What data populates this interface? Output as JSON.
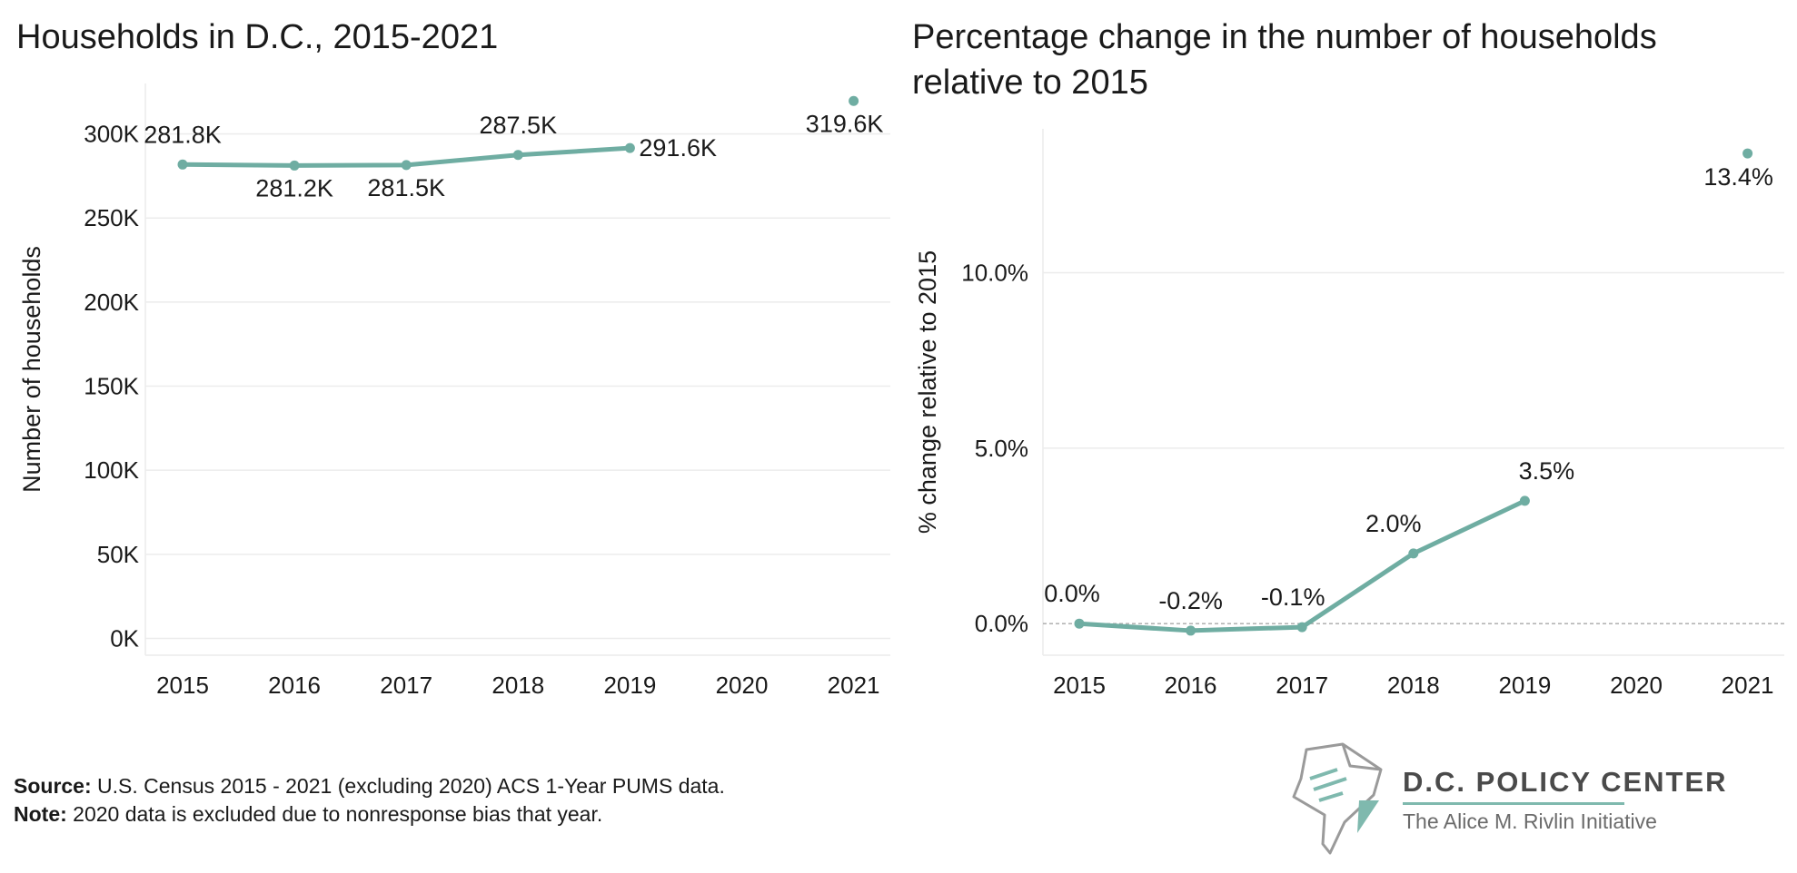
{
  "colors": {
    "line": "#6fada2",
    "grid": "#ececec",
    "zero_line": "#a8a8a8",
    "logo_accent": "#7fb9ae"
  },
  "chart_data": [
    {
      "type": "line",
      "title": "Households in D.C., 2015-2021",
      "ylabel": "Number of households",
      "xlabel": "",
      "x": [
        "2015",
        "2016",
        "2017",
        "2018",
        "2019",
        "2020",
        "2021"
      ],
      "series": [
        {
          "values": [
            281800,
            281200,
            281500,
            287500,
            291600,
            null,
            319600
          ]
        }
      ],
      "data_labels": [
        "281.8K",
        "281.2K",
        "281.5K",
        "287.5K",
        "291.6K",
        null,
        "319.6K"
      ],
      "yticks": [
        0,
        50000,
        100000,
        150000,
        200000,
        250000,
        300000
      ],
      "ytick_labels": [
        "0K",
        "50K",
        "100K",
        "150K",
        "200K",
        "250K",
        "300K"
      ],
      "ylim": [
        -10000,
        330000
      ],
      "grid": true
    },
    {
      "type": "line",
      "title": "Percentage change in the number of households relative to 2015",
      "ylabel": "% change relative to 2015",
      "xlabel": "",
      "x": [
        "2015",
        "2016",
        "2017",
        "2018",
        "2019",
        "2020",
        "2021"
      ],
      "series": [
        {
          "values": [
            0.0,
            -0.2,
            -0.1,
            2.0,
            3.5,
            null,
            13.4
          ]
        }
      ],
      "data_labels": [
        "0.0%",
        "-0.2%",
        "-0.1%",
        "2.0%",
        "3.5%",
        null,
        "13.4%"
      ],
      "yticks": [
        0,
        5,
        10
      ],
      "ytick_labels": [
        "0.0%",
        "5.0%",
        "10.0%"
      ],
      "ylim": [
        -0.9,
        14.1
      ],
      "grid": true
    }
  ],
  "footer": {
    "source_label": "Source:",
    "source_text": " U.S. Census 2015 - 2021 (excluding 2020) ACS 1-Year PUMS data.",
    "note_label": "Note:",
    "note_text": " 2020 data is excluded due to nonresponse bias that year."
  },
  "logo": {
    "name": "D.C. POLICY CENTER",
    "subtitle": "The Alice M. Rivlin Initiative"
  }
}
